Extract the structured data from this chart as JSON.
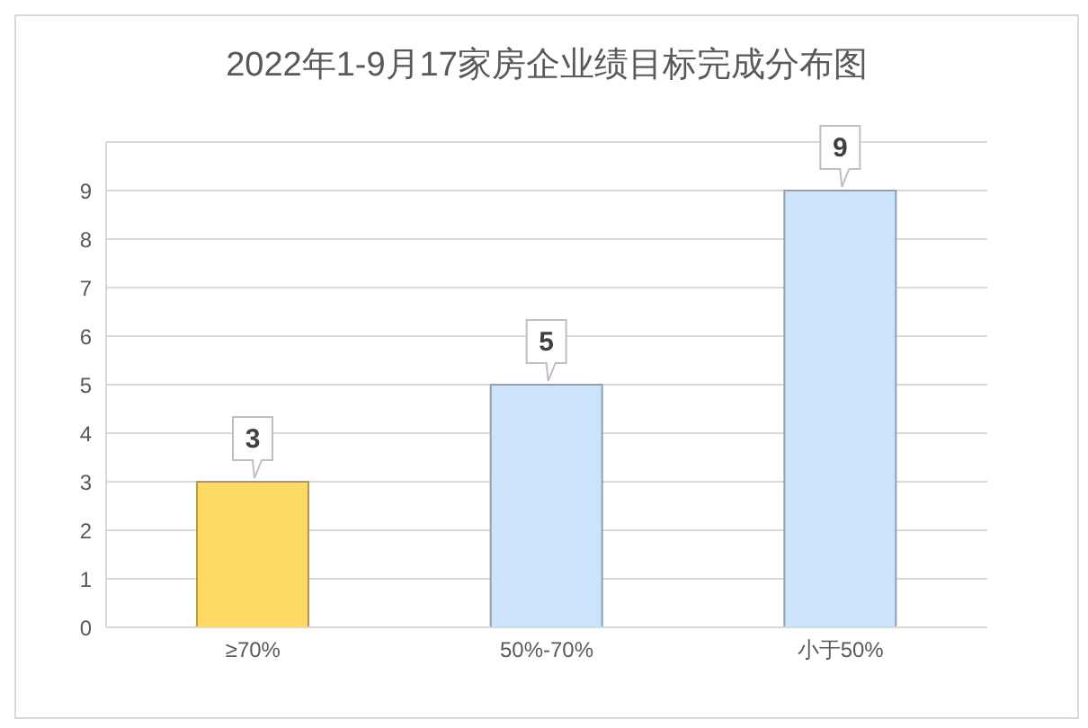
{
  "chart_data": {
    "type": "bar",
    "title": "2022年1-9月17家房企业绩目标完成分布图",
    "categories": [
      "≥70%",
      "50%-70%",
      "小于50%"
    ],
    "values": [
      3,
      5,
      9
    ],
    "colors": [
      "#ffd966",
      "#cce4fb",
      "#cce4fb"
    ],
    "ylim": [
      0,
      10
    ],
    "yticks": [
      0,
      1,
      2,
      3,
      4,
      5,
      6,
      7,
      8,
      9,
      {
        "value": 10,
        "label": null
      }
    ],
    "grid": "y",
    "data_labels": true
  }
}
